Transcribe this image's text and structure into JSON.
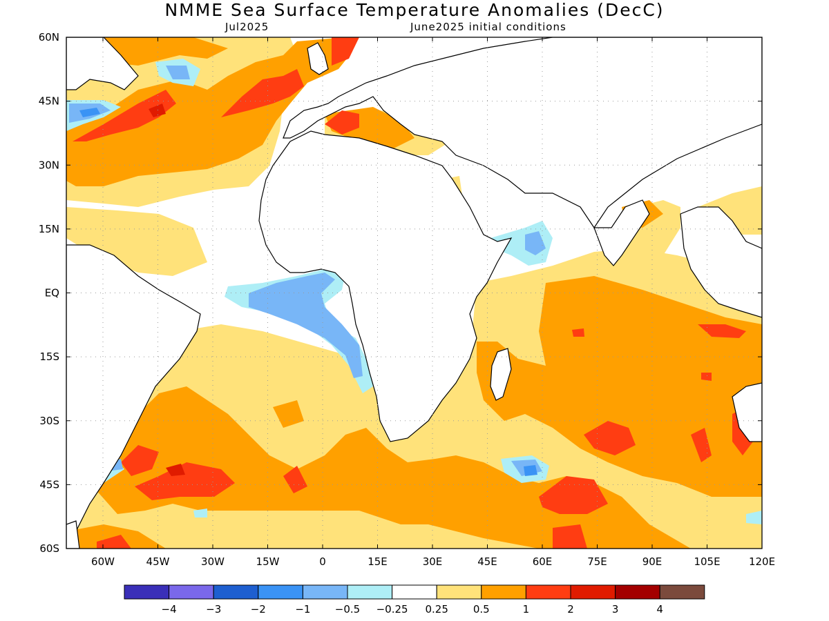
{
  "title": "NMME Sea Surface Temperature Anomalies (DecC)",
  "subtitle_left": "Jul2025",
  "subtitle_right": "June2025 initial conditions",
  "map": {
    "lon_range": [
      -70,
      120
    ],
    "lat_range": [
      -60,
      60
    ],
    "x_ticks": [
      "60W",
      "45W",
      "30W",
      "15W",
      "0",
      "15E",
      "30E",
      "45E",
      "60E",
      "75E",
      "90E",
      "105E",
      "120E"
    ],
    "x_tick_values": [
      -60,
      -45,
      -30,
      -15,
      0,
      15,
      30,
      45,
      60,
      75,
      90,
      105,
      120
    ],
    "y_ticks": [
      "60N",
      "45N",
      "30N",
      "15N",
      "EQ",
      "15S",
      "30S",
      "45S",
      "60S"
    ],
    "y_tick_values": [
      60,
      45,
      30,
      15,
      0,
      -15,
      -30,
      -45,
      -60
    ],
    "grid": "dotted"
  },
  "colors": {
    "c_m4": "#3a2fb8",
    "c_m3": "#7a68ea",
    "c_m2": "#1e5fd0",
    "c_m1": "#3a93f5",
    "c_m05": "#78b6f7",
    "c_m025": "#aeeef6",
    "c_0": "#ffffff",
    "c_025": "#ffe27a",
    "c_05": "#ffa000",
    "c_1": "#ff3d12",
    "c_2": "#e01b00",
    "c_3": "#a30000",
    "c_4": "#7b4a3c",
    "land_line": "#000000"
  },
  "colorbar": {
    "swatches": [
      "#3a2fb8",
      "#7a68ea",
      "#1e5fd0",
      "#3a93f5",
      "#78b6f7",
      "#aeeef6",
      "#ffffff",
      "#ffe27a",
      "#ffa000",
      "#ff3d12",
      "#e01b00",
      "#a30000",
      "#7b4a3c"
    ],
    "labels": [
      "−4",
      "−3",
      "−2",
      "−1",
      "−0.5",
      "−0.25",
      "0.25",
      "0.5",
      "1",
      "2",
      "3",
      "4"
    ]
  }
}
